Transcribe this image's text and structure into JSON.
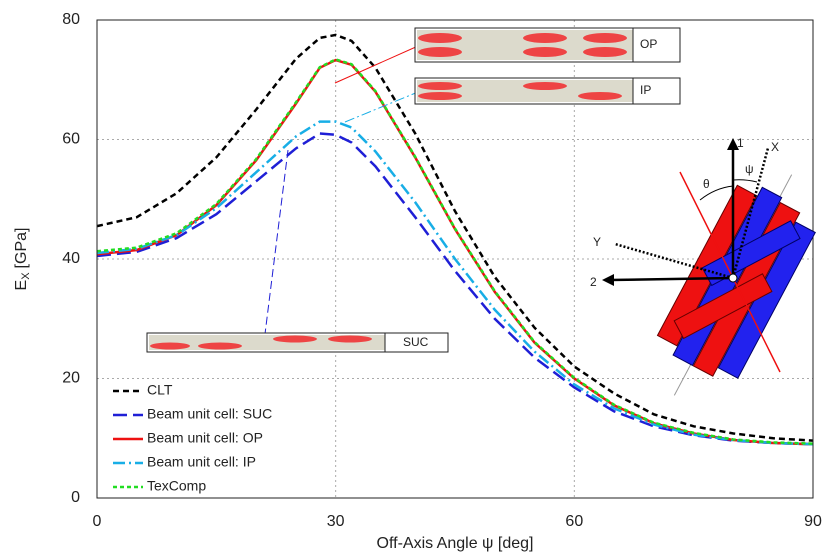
{
  "chart_data": {
    "type": "line",
    "xlabel": "Off-Axis Angle ψ [deg]",
    "ylabel": "E",
    "ylabel_sub": "X",
    "ylabel_unit": "[GPa]",
    "x": [
      0,
      5,
      10,
      15,
      20,
      25,
      28,
      30,
      32,
      35,
      40,
      45,
      50,
      55,
      60,
      65,
      70,
      75,
      80,
      85,
      90
    ],
    "series": [
      {
        "name": "CLT",
        "color": "#000000",
        "style": "dashed",
        "values": [
          45.5,
          47,
          51,
          57,
          65,
          73.5,
          77,
          77.5,
          76.5,
          72,
          61,
          48,
          37,
          28.5,
          22,
          17.5,
          14,
          12,
          10.8,
          10,
          9.6
        ]
      },
      {
        "name": "Beam unit cell: SUC",
        "color": "#1f1fd6",
        "style": "longdash",
        "values": [
          40.5,
          41.2,
          43.5,
          47.5,
          53,
          58.5,
          61,
          60.8,
          59.5,
          55.5,
          47,
          38,
          30,
          23.5,
          18.5,
          14.5,
          12,
          10.5,
          9.6,
          9.2,
          9
        ]
      },
      {
        "name": "Beam unit cell: OP",
        "color": "#ee1111",
        "style": "solid",
        "values": [
          40.8,
          41.5,
          44,
          49,
          56.5,
          66,
          72,
          73.3,
          72.5,
          68,
          57,
          45,
          34.5,
          26,
          20,
          15.5,
          12.5,
          10.8,
          9.7,
          9.2,
          9
        ]
      },
      {
        "name": "Beam unit cell: IP",
        "color": "#18aee6",
        "style": "dashdot",
        "values": [
          41,
          41.7,
          44,
          48.5,
          54.5,
          60.5,
          63,
          63,
          62,
          58,
          49.5,
          40,
          31.5,
          24.5,
          19,
          15,
          12.3,
          10.6,
          9.7,
          9.2,
          9
        ]
      },
      {
        "name": "TexComp",
        "color": "#22dd22",
        "style": "dotted",
        "values": [
          41.3,
          41.9,
          44.3,
          49.2,
          56.7,
          66.2,
          72.1,
          73.4,
          72.6,
          68.1,
          57.1,
          45.1,
          34.6,
          26.1,
          20.1,
          15.6,
          12.6,
          10.9,
          9.8,
          9.3,
          9.1
        ]
      }
    ],
    "xlim": [
      0,
      90
    ],
    "xticks": [
      0,
      30,
      60,
      90
    ],
    "ylim": [
      0,
      80
    ],
    "yticks": [
      0,
      20,
      40,
      60,
      80
    ],
    "grid": true,
    "legend": "lower left",
    "annotations": [
      "OP",
      "IP",
      "SUC",
      "1",
      "2",
      "X",
      "Y",
      "θ",
      "ψ"
    ]
  }
}
